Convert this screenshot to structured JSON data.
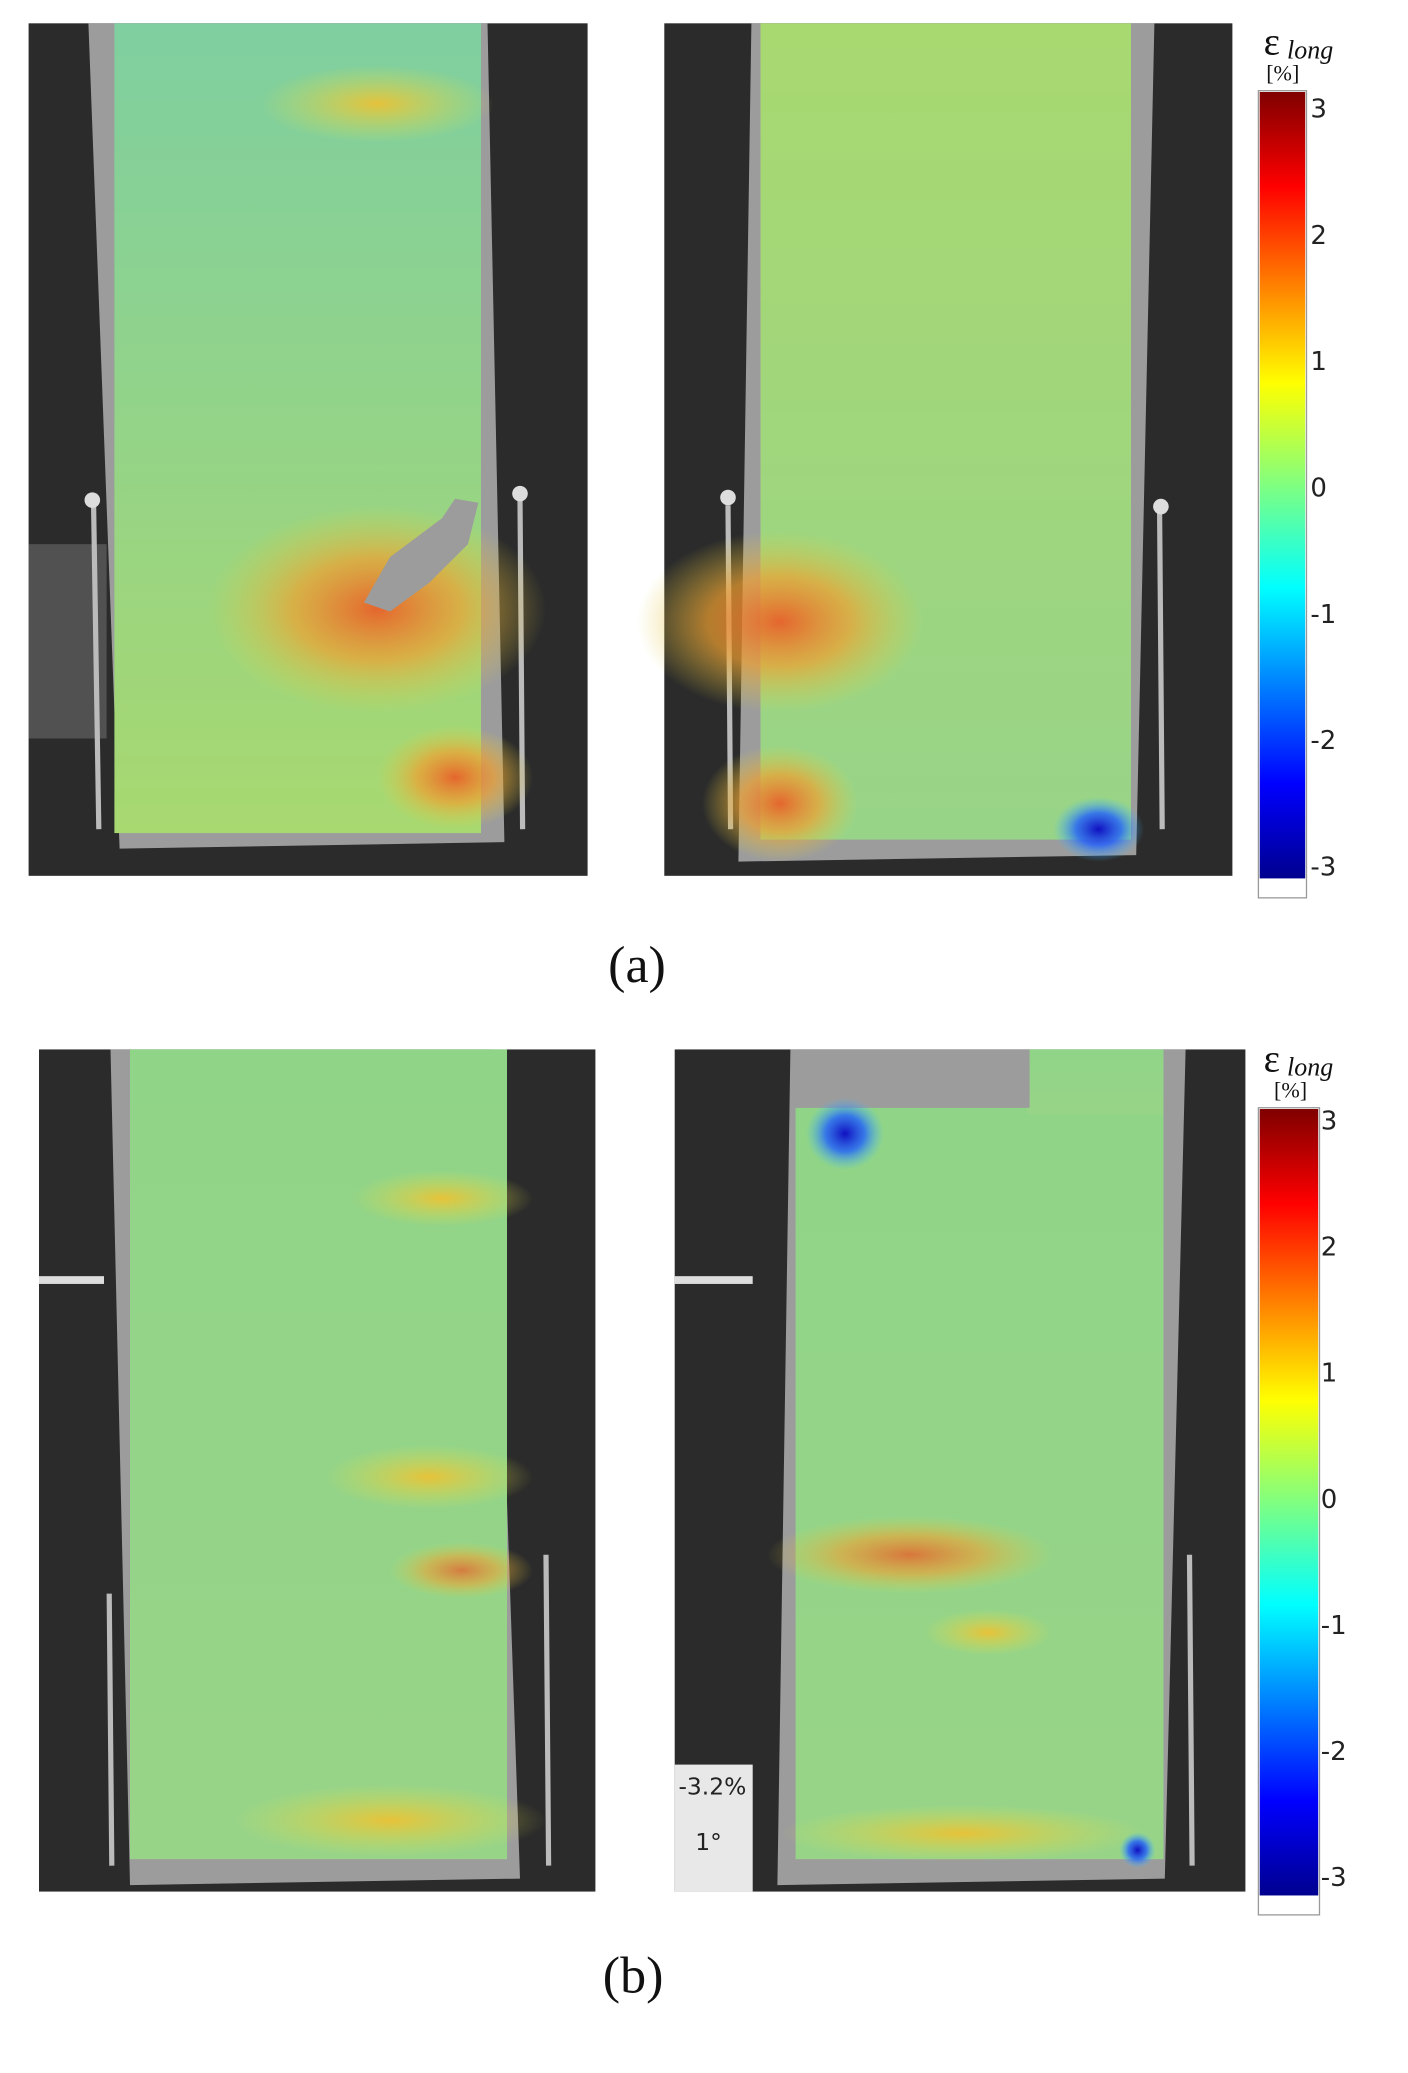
{
  "panels": [
    {
      "label": "(a)",
      "colorbar": {
        "symbol": "ε",
        "subscript": "long",
        "unit": "[%]",
        "ticks": [
          "3",
          "2",
          "1",
          "0",
          "-1",
          "-2",
          "-3"
        ]
      }
    },
    {
      "label": "(b)",
      "colorbar": {
        "symbol": "ε",
        "subscript": "long",
        "unit": "[%]",
        "ticks": [
          "3",
          "2",
          "1",
          "0",
          "-1",
          "-2",
          "-3"
        ]
      },
      "photo_text": [
        "-3.2%",
        "1°"
      ]
    }
  ]
}
